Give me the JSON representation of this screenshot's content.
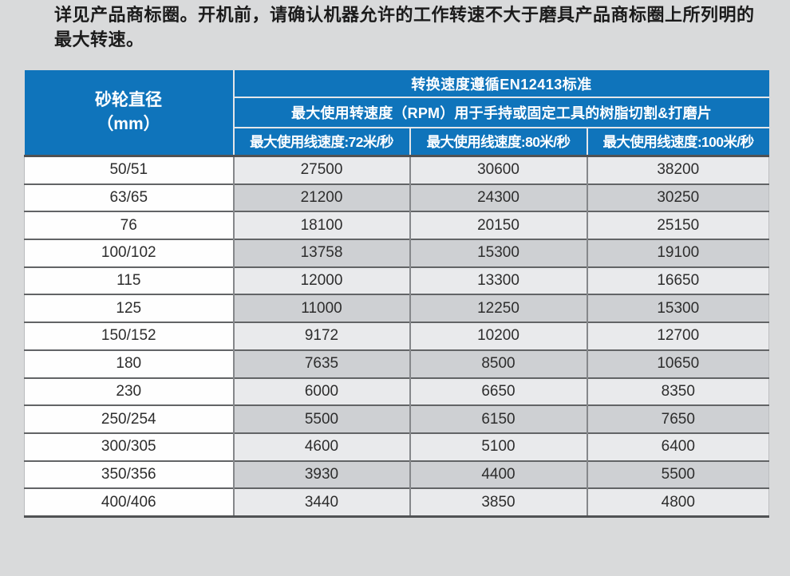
{
  "intro": {
    "lines": [
      "详见产品商标圈。开机前，请确认机器允许的工作转速不大于磨具产品商标圈上所列明的",
      "最大转速。"
    ]
  },
  "colors": {
    "header_blue": "#0f74bb",
    "page_bg": "#d9dadb",
    "row_light": "#e9eaec",
    "row_dark": "#ced0d3",
    "diameter_cell_bg": "#fefefe",
    "header_text": "#ffffff",
    "body_text": "#2d2d2d"
  },
  "table": {
    "diameter_header_line1": "砂轮直径",
    "diameter_header_line2": "（mm）",
    "standard_header": "转换速度遵循EN12413标准",
    "usage_header": "最大使用转速度（RPM）用于手持或固定工具的树脂切割&打磨片",
    "speed_headers": [
      "最大使用线速度:72米/秒",
      "最大使用线速度:80米/秒",
      "最大使用线速度:100米/秒"
    ],
    "rows": [
      [
        "50/51",
        "27500",
        "30600",
        "38200"
      ],
      [
        "63/65",
        "21200",
        "24300",
        "30250"
      ],
      [
        "76",
        "18100",
        "20150",
        "25150"
      ],
      [
        "100/102",
        "13758",
        "15300",
        "19100"
      ],
      [
        "115",
        "12000",
        "13300",
        "16650"
      ],
      [
        "125",
        "11000",
        "12250",
        "15300"
      ],
      [
        "150/152",
        "9172",
        "10200",
        "12700"
      ],
      [
        "180",
        "7635",
        "8500",
        "10650"
      ],
      [
        "230",
        "6000",
        "6650",
        "8350"
      ],
      [
        "250/254",
        "5500",
        "6150",
        "7650"
      ],
      [
        "300/305",
        "4600",
        "5100",
        "6400"
      ],
      [
        "350/356",
        "3930",
        "4400",
        "5500"
      ],
      [
        "400/406",
        "3440",
        "3850",
        "4800"
      ]
    ]
  },
  "chart_data": {
    "type": "table",
    "title": "转换速度遵循EN12413标准",
    "subtitle": "最大使用转速度（RPM）用于手持或固定工具的树脂切割&打磨片",
    "columns": [
      "砂轮直径（mm）",
      "最大使用线速度:72米/秒",
      "最大使用线速度:80米/秒",
      "最大使用线速度:100米/秒"
    ],
    "rows": [
      [
        "50/51",
        27500,
        30600,
        38200
      ],
      [
        "63/65",
        21200,
        24300,
        30250
      ],
      [
        "76",
        18100,
        20150,
        25150
      ],
      [
        "100/102",
        13758,
        15300,
        19100
      ],
      [
        "115",
        12000,
        13300,
        16650
      ],
      [
        "125",
        11000,
        12250,
        15300
      ],
      [
        "150/152",
        9172,
        10200,
        12700
      ],
      [
        "180",
        7635,
        8500,
        10650
      ],
      [
        "230",
        6000,
        6650,
        8350
      ],
      [
        "250/254",
        5500,
        6150,
        7650
      ],
      [
        "300/305",
        4600,
        5100,
        6400
      ],
      [
        "350/356",
        3930,
        4400,
        5500
      ],
      [
        "400/406",
        3440,
        3850,
        4800
      ]
    ]
  }
}
